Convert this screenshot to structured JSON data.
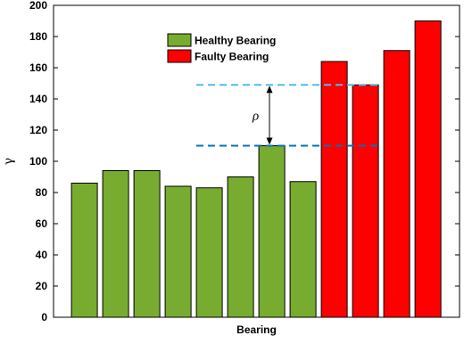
{
  "chart_data": {
    "type": "bar",
    "xlabel": "Bearing",
    "ylabel": "γ",
    "ylim": [
      0,
      200
    ],
    "yticks": [
      0,
      20,
      40,
      60,
      80,
      100,
      120,
      140,
      160,
      180,
      200
    ],
    "grid": false,
    "legend_position": "top-center",
    "series": [
      {
        "name": "Healthy Bearing",
        "color": "#77ac30",
        "values": [
          86,
          94,
          94,
          84,
          83,
          90,
          110,
          87
        ]
      },
      {
        "name": "Faulty Bearing",
        "color": "#ff0000",
        "values": [
          164,
          149,
          171,
          190
        ]
      }
    ],
    "annotations": {
      "rho_label": "ρ",
      "upper_line_value": 149,
      "lower_line_value": 110,
      "upper_line_color": "#4dbeee",
      "lower_line_color": "#0072bd"
    }
  }
}
